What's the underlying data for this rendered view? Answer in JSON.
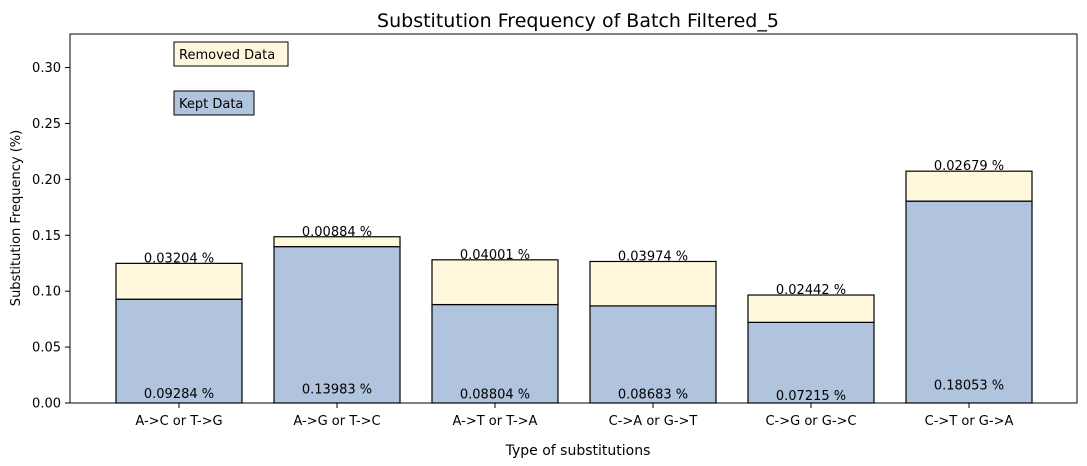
{
  "chart_data": {
    "type": "bar",
    "stacked": true,
    "title": "Substitution Frequency of Batch Filtered_5",
    "xlabel": "Type of substitutions",
    "ylabel": "Substitution Frequency (%)",
    "ylim": [
      0,
      0.33
    ],
    "yticks": [
      0.0,
      0.05,
      0.1,
      0.15,
      0.2,
      0.25,
      0.3
    ],
    "ytick_labels": [
      "0.00",
      "0.05",
      "0.10",
      "0.15",
      "0.20",
      "0.25",
      "0.30"
    ],
    "grid": false,
    "legend_position": "top-left",
    "categories": [
      "A->C or T->G",
      "A->G or T->C",
      "A->T or T->A",
      "C->A or G->T",
      "C->G or G->C",
      "C->T or G->A"
    ],
    "series": [
      {
        "name": "Kept Data",
        "color": "#b0c4de",
        "values": [
          0.09284,
          0.13983,
          0.08804,
          0.08683,
          0.07215,
          0.18053
        ],
        "labels": [
          "0.09284 %",
          "0.13983 %",
          "0.08804 %",
          "0.08683 %",
          "0.07215 %",
          "0.18053 %"
        ]
      },
      {
        "name": "Removed Data",
        "color": "#fff8dc",
        "values": [
          0.03204,
          0.00884,
          0.04001,
          0.03974,
          0.02442,
          0.02679
        ],
        "labels": [
          "0.03204 %",
          "0.00884 %",
          "0.04001 %",
          "0.03974 %",
          "0.02442 %",
          "0.02679 %"
        ]
      }
    ]
  }
}
